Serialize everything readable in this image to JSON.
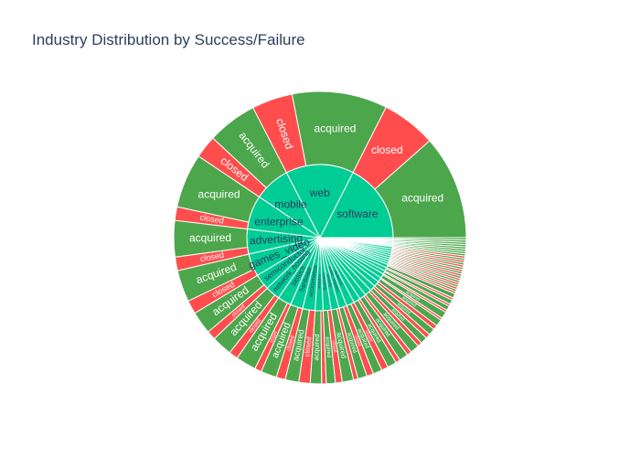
{
  "chart_data": {
    "type": "sunburst",
    "title": "Industry Distribution by Success/Failure",
    "colors": {
      "industry": "#00cc96",
      "acquired": "#4ca64c",
      "closed": "#ff4d4d"
    },
    "rings": [
      "industry",
      "status"
    ],
    "segments": [
      {
        "industry": "software",
        "acquired": 46,
        "closed": 24
      },
      {
        "industry": "web",
        "acquired": 42,
        "closed": 18
      },
      {
        "industry": "mobile",
        "acquired": 22,
        "closed": 10
      },
      {
        "industry": "enterprise",
        "acquired": 24,
        "closed": 6
      },
      {
        "industry": "advertising",
        "acquired": 16,
        "closed": 6
      },
      {
        "industry": "games_video",
        "acquired": 14,
        "closed": 6
      },
      {
        "industry": "semiconductor",
        "acquired": 10,
        "closed": 4
      },
      {
        "industry": "network_hosting",
        "acquired": 9,
        "closed": 4
      },
      {
        "industry": "biotech",
        "acquired": 9,
        "closed": 3
      },
      {
        "industry": "hardware",
        "acquired": 7,
        "closed": 4
      },
      {
        "industry": "ecommerce",
        "acquired": 6,
        "closed": 5
      },
      {
        "industry": "analytics",
        "acquired": 5,
        "closed": 2
      },
      {
        "industry": "consulting",
        "acquired": 4,
        "closed": 3
      },
      {
        "industry": "security",
        "acquired": 5,
        "closed": 2
      },
      {
        "industry": "public_relations",
        "acquired": 4,
        "closed": 3
      },
      {
        "industry": "cleantech",
        "acquired": 4,
        "closed": 3
      },
      {
        "industry": "search",
        "acquired": 4,
        "closed": 2
      },
      {
        "industry": "social",
        "acquired": 4,
        "closed": 2
      },
      {
        "industry": "messaging",
        "acquired": 4,
        "closed": 2
      },
      {
        "industry": "news",
        "acquired": 3,
        "closed": 2
      },
      {
        "industry": "photo_video",
        "acquired": 3,
        "closed": 2
      },
      {
        "industry": "medical",
        "acquired": 3,
        "closed": 1
      },
      {
        "industry": "finance",
        "acquired": 3,
        "closed": 1
      },
      {
        "industry": "education",
        "acquired": 2,
        "closed": 1
      },
      {
        "industry": "music",
        "acquired": 2,
        "closed": 1
      },
      {
        "industry": "travel",
        "acquired": 2,
        "closed": 1
      },
      {
        "industry": "fashion",
        "acquired": 1,
        "closed": 1
      },
      {
        "industry": "sports",
        "acquired": 1,
        "closed": 1
      },
      {
        "industry": "automotive",
        "acquired": 1,
        "closed": 1
      },
      {
        "industry": "health",
        "acquired": 1,
        "closed": 1
      },
      {
        "industry": "real_estate",
        "acquired": 1,
        "closed": 1
      },
      {
        "industry": "legal",
        "acquired": 1,
        "closed": 1
      },
      {
        "industry": "manufacturing",
        "acquired": 1,
        "closed": 1
      },
      {
        "industry": "transportation",
        "acquired": 1,
        "closed": 1
      },
      {
        "industry": "nanotech",
        "acquired": 1,
        "closed": 0
      },
      {
        "industry": "hospitality",
        "acquired": 1,
        "closed": 0
      },
      {
        "industry": "local",
        "acquired": 1,
        "closed": 0
      },
      {
        "industry": "design",
        "acquired": 1,
        "closed": 0
      },
      {
        "industry": "government",
        "acquired": 1,
        "closed": 0
      },
      {
        "industry": "nonprofit",
        "acquired": 1,
        "closed": 0
      },
      {
        "industry": "pets",
        "acquired": 1,
        "closed": 0
      },
      {
        "industry": "other",
        "acquired": 1,
        "closed": 0
      }
    ]
  }
}
